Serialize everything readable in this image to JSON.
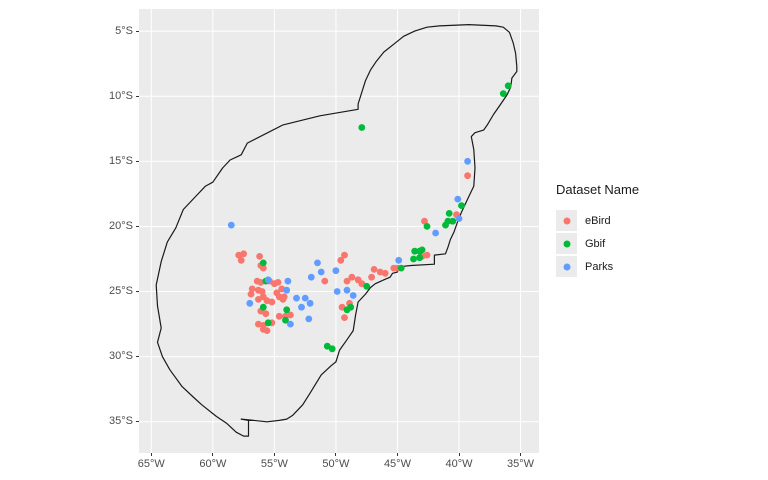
{
  "chart_data": {
    "type": "scatter",
    "subtype": "map",
    "title": "",
    "legend": {
      "title": "Dataset Name",
      "position": "right",
      "entries": [
        {
          "label": "eBird",
          "color": "#F8766D"
        },
        {
          "label": "Gbif",
          "color": "#00BA38"
        },
        {
          "label": "Parks",
          "color": "#619CFF"
        }
      ]
    },
    "x_axis": {
      "tick_values": [
        -65,
        -60,
        -55,
        -50,
        -45,
        -40,
        -35
      ],
      "tick_labels": [
        "65°W",
        "60°W",
        "55°W",
        "50°W",
        "45°W",
        "40°W",
        "35°W"
      ],
      "range": [
        -66.0,
        -33.5
      ]
    },
    "y_axis": {
      "tick_values": [
        -5,
        -10,
        -15,
        -20,
        -25,
        -30,
        -35
      ],
      "tick_labels": [
        "5°S",
        "10°S",
        "15°S",
        "20°S",
        "25°S",
        "30°S",
        "35°S"
      ],
      "range": [
        -3.3,
        -37.4
      ]
    },
    "grid": true,
    "style": {
      "panel_bg": "#EBEBEB",
      "grid_color": "#FFFFFF",
      "axis_text_color": "#4D4D4D",
      "tick_color": "#333333",
      "outline_color": "#1A1A1A",
      "outline_width": 1.2,
      "point_radius": 3.4,
      "legend_key_bg": "#EBEBEB"
    },
    "map_outline": [
      [
        -48.2,
        -11.0
      ],
      [
        -51.3,
        -11.5
      ],
      [
        -54.3,
        -12.2
      ],
      [
        -57.2,
        -13.6
      ],
      [
        -57.7,
        -14.5
      ],
      [
        -58.6,
        -14.9
      ],
      [
        -59.2,
        -15.5
      ],
      [
        -60.0,
        -16.6
      ],
      [
        -60.6,
        -16.9
      ],
      [
        -61.4,
        -17.7
      ],
      [
        -62.4,
        -18.7
      ],
      [
        -63.0,
        -20.1
      ],
      [
        -63.7,
        -21.2
      ],
      [
        -64.2,
        -22.7
      ],
      [
        -64.6,
        -24.5
      ],
      [
        -64.5,
        -26.1
      ],
      [
        -64.2,
        -27.8
      ],
      [
        -64.5,
        -28.9
      ],
      [
        -64.1,
        -30.0
      ],
      [
        -63.5,
        -31.0
      ],
      [
        -62.5,
        -32.3
      ],
      [
        -61.6,
        -33.1
      ],
      [
        -60.9,
        -33.7
      ],
      [
        -59.7,
        -34.6
      ],
      [
        -58.9,
        -35.1
      ],
      [
        -58.1,
        -35.8
      ],
      [
        -57.5,
        -36.1
      ],
      [
        -57.1,
        -36.1
      ],
      [
        -57.1,
        -34.9
      ],
      [
        -57.7,
        -34.8
      ],
      [
        -56.7,
        -34.9
      ],
      [
        -55.6,
        -35.0
      ],
      [
        -54.6,
        -34.9
      ],
      [
        -54.0,
        -34.8
      ],
      [
        -53.5,
        -34.5
      ],
      [
        -52.7,
        -33.7
      ],
      [
        -52.1,
        -32.8
      ],
      [
        -51.2,
        -31.4
      ],
      [
        -50.4,
        -30.7
      ],
      [
        -50.0,
        -30.4
      ],
      [
        -49.7,
        -29.5
      ],
      [
        -49.1,
        -28.7
      ],
      [
        -48.6,
        -28.0
      ],
      [
        -48.4,
        -26.8
      ],
      [
        -48.2,
        -25.8
      ],
      [
        -47.6,
        -25.2
      ],
      [
        -47.2,
        -24.7
      ],
      [
        -46.8,
        -24.4
      ],
      [
        -46.1,
        -24.1
      ],
      [
        -45.6,
        -23.9
      ],
      [
        -45.4,
        -23.6
      ],
      [
        -45.0,
        -23.5
      ],
      [
        -44.9,
        -23.1
      ],
      [
        -43.9,
        -23.0
      ],
      [
        -42.0,
        -22.9
      ],
      [
        -42.0,
        -22.2
      ],
      [
        -41.1,
        -22.1
      ],
      [
        -40.9,
        -21.6
      ],
      [
        -40.7,
        -21.0
      ],
      [
        -40.4,
        -20.4
      ],
      [
        -40.1,
        -19.6
      ],
      [
        -39.8,
        -18.9
      ],
      [
        -39.3,
        -17.9
      ],
      [
        -38.8,
        -16.9
      ],
      [
        -38.7,
        -15.5
      ],
      [
        -38.8,
        -14.1
      ],
      [
        -39.0,
        -13.1
      ],
      [
        -38.7,
        -12.8
      ],
      [
        -38.0,
        -12.6
      ],
      [
        -37.7,
        -12.2
      ],
      [
        -37.2,
        -11.4
      ],
      [
        -36.6,
        -10.6
      ],
      [
        -36.1,
        -9.9
      ],
      [
        -35.8,
        -9.3
      ],
      [
        -35.7,
        -8.6
      ],
      [
        -35.3,
        -8.1
      ],
      [
        -35.3,
        -7.7
      ],
      [
        -35.4,
        -6.7
      ],
      [
        -35.6,
        -5.9
      ],
      [
        -35.9,
        -5.1
      ],
      [
        -36.4,
        -4.7
      ],
      [
        -37.0,
        -4.6
      ],
      [
        -39.2,
        -4.5
      ],
      [
        -41.6,
        -4.6
      ],
      [
        -42.6,
        -4.7
      ],
      [
        -43.6,
        -5.0
      ],
      [
        -44.5,
        -5.4
      ],
      [
        -45.3,
        -6.0
      ],
      [
        -46.1,
        -6.6
      ],
      [
        -46.7,
        -7.3
      ],
      [
        -47.2,
        -8.0
      ],
      [
        -47.6,
        -8.8
      ],
      [
        -47.9,
        -9.7
      ],
      [
        -48.2,
        -10.6
      ]
    ],
    "series": [
      {
        "name": "eBird",
        "color": "#F8766D",
        "points": [
          [
            -57.9,
            -22.2
          ],
          [
            -57.5,
            -22.1
          ],
          [
            -57.7,
            -22.6
          ],
          [
            -56.2,
            -22.3
          ],
          [
            -56.1,
            -23.0
          ],
          [
            -55.9,
            -23.2
          ],
          [
            -56.4,
            -24.2
          ],
          [
            -56.1,
            -24.3
          ],
          [
            -55.4,
            -24.2
          ],
          [
            -55.0,
            -24.4
          ],
          [
            -54.7,
            -24.3
          ],
          [
            -54.4,
            -24.8
          ],
          [
            -54.8,
            -25.1
          ],
          [
            -56.8,
            -24.8
          ],
          [
            -56.3,
            -24.9
          ],
          [
            -56.0,
            -25.0
          ],
          [
            -56.9,
            -25.2
          ],
          [
            -56.3,
            -25.6
          ],
          [
            -55.9,
            -25.4
          ],
          [
            -55.6,
            -25.7
          ],
          [
            -55.2,
            -25.8
          ],
          [
            -54.6,
            -25.4
          ],
          [
            -54.3,
            -25.6
          ],
          [
            -54.2,
            -25.4
          ],
          [
            -55.7,
            -26.7
          ],
          [
            -56.1,
            -26.5
          ],
          [
            -56.3,
            -27.5
          ],
          [
            -55.9,
            -27.6
          ],
          [
            -55.9,
            -27.9
          ],
          [
            -55.6,
            -28.0
          ],
          [
            -54.6,
            -26.9
          ],
          [
            -54.1,
            -26.9
          ],
          [
            -53.7,
            -26.8
          ],
          [
            -55.2,
            -27.4
          ],
          [
            -50.9,
            -24.2
          ],
          [
            -49.5,
            -26.2
          ],
          [
            -48.9,
            -25.9
          ],
          [
            -49.3,
            -27.0
          ],
          [
            -49.6,
            -22.6
          ],
          [
            -49.3,
            -22.2
          ],
          [
            -49.1,
            -24.2
          ],
          [
            -48.7,
            -23.9
          ],
          [
            -48.2,
            -24.1
          ],
          [
            -47.9,
            -24.4
          ],
          [
            -47.1,
            -23.9
          ],
          [
            -46.9,
            -23.3
          ],
          [
            -46.4,
            -23.5
          ],
          [
            -46.0,
            -23.6
          ],
          [
            -45.3,
            -23.2
          ],
          [
            -45.0,
            -23.2
          ],
          [
            -43.0,
            -22.3
          ],
          [
            -42.6,
            -22.2
          ],
          [
            -42.8,
            -19.6
          ],
          [
            -40.2,
            -19.1
          ],
          [
            -39.3,
            -16.1
          ]
        ]
      },
      {
        "name": "Gbif",
        "color": "#00BA38",
        "points": [
          [
            -36.0,
            -9.2
          ],
          [
            -36.4,
            -9.8
          ],
          [
            -47.9,
            -12.4
          ],
          [
            -39.8,
            -18.4
          ],
          [
            -40.8,
            -19.0
          ],
          [
            -40.9,
            -19.6
          ],
          [
            -41.1,
            -19.9
          ],
          [
            -40.5,
            -19.6
          ],
          [
            -42.6,
            -20.0
          ],
          [
            -43.6,
            -21.9
          ],
          [
            -43.2,
            -21.9
          ],
          [
            -43.0,
            -21.8
          ],
          [
            -43.7,
            -22.5
          ],
          [
            -43.2,
            -22.4
          ],
          [
            -44.7,
            -23.2
          ],
          [
            -55.9,
            -22.8
          ],
          [
            -55.7,
            -24.2
          ],
          [
            -55.9,
            -26.2
          ],
          [
            -55.5,
            -27.4
          ],
          [
            -54.0,
            -26.4
          ],
          [
            -54.1,
            -27.2
          ],
          [
            -49.1,
            -26.4
          ],
          [
            -48.8,
            -26.2
          ],
          [
            -50.7,
            -29.2
          ],
          [
            -50.3,
            -29.4
          ],
          [
            -47.5,
            -24.6
          ]
        ]
      },
      {
        "name": "Parks",
        "color": "#619CFF",
        "points": [
          [
            -58.5,
            -19.9
          ],
          [
            -39.3,
            -15.0
          ],
          [
            -40.1,
            -17.9
          ],
          [
            -40.0,
            -19.4
          ],
          [
            -41.9,
            -20.5
          ],
          [
            -44.9,
            -22.6
          ],
          [
            -51.5,
            -22.8
          ],
          [
            -51.2,
            -23.5
          ],
          [
            -52.0,
            -23.9
          ],
          [
            -50.0,
            -23.4
          ],
          [
            -55.5,
            -24.1
          ],
          [
            -53.9,
            -24.2
          ],
          [
            -54.0,
            -24.9
          ],
          [
            -57.0,
            -25.9
          ],
          [
            -53.2,
            -25.5
          ],
          [
            -52.5,
            -25.5
          ],
          [
            -52.8,
            -26.2
          ],
          [
            -52.1,
            -25.9
          ],
          [
            -53.7,
            -27.5
          ],
          [
            -52.2,
            -27.1
          ],
          [
            -49.9,
            -25.0
          ],
          [
            -49.1,
            -24.9
          ],
          [
            -48.6,
            -25.3
          ]
        ]
      }
    ]
  }
}
